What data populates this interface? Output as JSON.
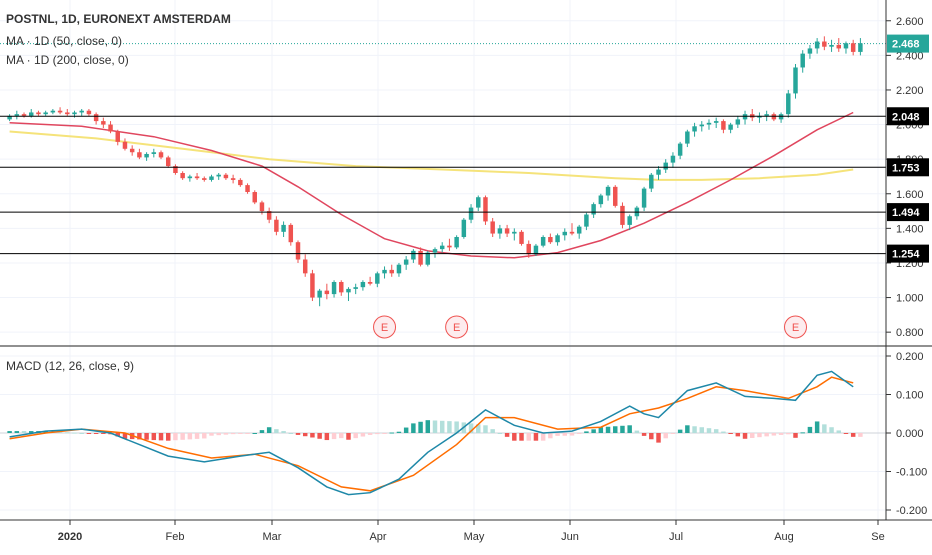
{
  "chart_data": {
    "type": "candlestick",
    "title": "POSTNL, 1D, EURONEXT AMSTERDAM",
    "legend": [
      "MA · 1D (50, close, 0)",
      "MA · 1D (200, close, 0)"
    ],
    "price_axis": {
      "ylim": [
        0.72,
        2.72
      ],
      "ticks": [
        "2.600",
        "2.400",
        "2.200",
        "2.000",
        "1.800",
        "1.600",
        "1.400",
        "1.200",
        "1.000",
        "0.800"
      ],
      "tick_values": [
        2.6,
        2.4,
        2.2,
        2.0,
        1.8,
        1.6,
        1.4,
        1.2,
        1.0,
        0.8
      ]
    },
    "time_axis": {
      "labels": [
        "2020",
        "Feb",
        "Mar",
        "Apr",
        "May",
        "Jun",
        "Jul",
        "Aug",
        "Se"
      ]
    },
    "current_price": {
      "value": 2.468,
      "label": "2.468"
    },
    "horizontal_levels": [
      {
        "value": 2.048,
        "label": "2.048"
      },
      {
        "value": 1.753,
        "label": "1.753"
      },
      {
        "value": 1.494,
        "label": "1.494"
      },
      {
        "value": 1.254,
        "label": "1.254"
      }
    ],
    "earnings_markers": {
      "label": "E",
      "count": 3
    },
    "candles": [
      [
        2.03,
        2.06,
        2.02,
        2.05
      ],
      [
        2.05,
        2.08,
        2.03,
        2.06
      ],
      [
        2.06,
        2.07,
        2.04,
        2.05
      ],
      [
        2.05,
        2.09,
        2.04,
        2.07
      ],
      [
        2.07,
        2.08,
        2.05,
        2.06
      ],
      [
        2.06,
        2.08,
        2.05,
        2.07
      ],
      [
        2.07,
        2.09,
        2.06,
        2.08
      ],
      [
        2.08,
        2.1,
        2.06,
        2.07
      ],
      [
        2.07,
        2.09,
        2.05,
        2.06
      ],
      [
        2.06,
        2.08,
        2.04,
        2.07
      ],
      [
        2.07,
        2.09,
        2.05,
        2.08
      ],
      [
        2.08,
        2.09,
        2.05,
        2.06
      ],
      [
        2.06,
        2.07,
        2.0,
        2.02
      ],
      [
        2.02,
        2.04,
        1.98,
        2.0
      ],
      [
        2.0,
        2.02,
        1.95,
        1.96
      ],
      [
        1.96,
        1.97,
        1.88,
        1.9
      ],
      [
        1.9,
        1.92,
        1.85,
        1.86
      ],
      [
        1.86,
        1.88,
        1.82,
        1.84
      ],
      [
        1.84,
        1.86,
        1.8,
        1.81
      ],
      [
        1.81,
        1.84,
        1.79,
        1.83
      ],
      [
        1.83,
        1.86,
        1.81,
        1.84
      ],
      [
        1.84,
        1.85,
        1.8,
        1.81
      ],
      [
        1.81,
        1.82,
        1.75,
        1.76
      ],
      [
        1.76,
        1.77,
        1.71,
        1.72
      ],
      [
        1.72,
        1.73,
        1.68,
        1.69
      ],
      [
        1.69,
        1.71,
        1.67,
        1.7
      ],
      [
        1.7,
        1.72,
        1.68,
        1.69
      ],
      [
        1.69,
        1.7,
        1.67,
        1.68
      ],
      [
        1.68,
        1.71,
        1.67,
        1.7
      ],
      [
        1.7,
        1.72,
        1.68,
        1.71
      ],
      [
        1.71,
        1.72,
        1.68,
        1.69
      ],
      [
        1.69,
        1.71,
        1.66,
        1.68
      ],
      [
        1.68,
        1.69,
        1.64,
        1.65
      ],
      [
        1.65,
        1.66,
        1.6,
        1.61
      ],
      [
        1.61,
        1.62,
        1.54,
        1.55
      ],
      [
        1.55,
        1.56,
        1.48,
        1.5
      ],
      [
        1.5,
        1.52,
        1.43,
        1.45
      ],
      [
        1.45,
        1.47,
        1.36,
        1.38
      ],
      [
        1.38,
        1.44,
        1.35,
        1.42
      ],
      [
        1.42,
        1.43,
        1.3,
        1.32
      ],
      [
        1.32,
        1.33,
        1.2,
        1.22
      ],
      [
        1.22,
        1.25,
        1.12,
        1.14
      ],
      [
        1.14,
        1.16,
        0.98,
        1.0
      ],
      [
        1.0,
        1.05,
        0.95,
        1.04
      ],
      [
        1.04,
        1.08,
        0.99,
        1.02
      ],
      [
        1.02,
        1.1,
        1.0,
        1.09
      ],
      [
        1.09,
        1.1,
        1.01,
        1.03
      ],
      [
        1.03,
        1.06,
        0.98,
        1.05
      ],
      [
        1.05,
        1.08,
        1.02,
        1.06
      ],
      [
        1.06,
        1.1,
        1.04,
        1.09
      ],
      [
        1.09,
        1.12,
        1.07,
        1.08
      ],
      [
        1.08,
        1.15,
        1.06,
        1.14
      ],
      [
        1.14,
        1.18,
        1.11,
        1.16
      ],
      [
        1.16,
        1.19,
        1.12,
        1.14
      ],
      [
        1.14,
        1.2,
        1.12,
        1.19
      ],
      [
        1.19,
        1.24,
        1.16,
        1.22
      ],
      [
        1.22,
        1.28,
        1.2,
        1.27
      ],
      [
        1.27,
        1.29,
        1.18,
        1.19
      ],
      [
        1.19,
        1.27,
        1.18,
        1.26
      ],
      [
        1.26,
        1.29,
        1.23,
        1.28
      ],
      [
        1.28,
        1.32,
        1.26,
        1.3
      ],
      [
        1.3,
        1.34,
        1.27,
        1.29
      ],
      [
        1.29,
        1.36,
        1.28,
        1.35
      ],
      [
        1.35,
        1.46,
        1.34,
        1.45
      ],
      [
        1.45,
        1.54,
        1.43,
        1.52
      ],
      [
        1.52,
        1.59,
        1.5,
        1.58
      ],
      [
        1.58,
        1.59,
        1.42,
        1.44
      ],
      [
        1.44,
        1.46,
        1.35,
        1.37
      ],
      [
        1.37,
        1.42,
        1.34,
        1.4
      ],
      [
        1.4,
        1.42,
        1.35,
        1.37
      ],
      [
        1.37,
        1.4,
        1.33,
        1.38
      ],
      [
        1.38,
        1.39,
        1.3,
        1.31
      ],
      [
        1.31,
        1.33,
        1.23,
        1.25
      ],
      [
        1.25,
        1.31,
        1.24,
        1.3
      ],
      [
        1.3,
        1.36,
        1.29,
        1.35
      ],
      [
        1.35,
        1.37,
        1.31,
        1.32
      ],
      [
        1.32,
        1.37,
        1.3,
        1.36
      ],
      [
        1.36,
        1.4,
        1.33,
        1.38
      ],
      [
        1.38,
        1.43,
        1.36,
        1.37
      ],
      [
        1.37,
        1.42,
        1.34,
        1.41
      ],
      [
        1.41,
        1.49,
        1.39,
        1.48
      ],
      [
        1.48,
        1.55,
        1.46,
        1.54
      ],
      [
        1.54,
        1.6,
        1.52,
        1.59
      ],
      [
        1.59,
        1.65,
        1.56,
        1.64
      ],
      [
        1.64,
        1.65,
        1.52,
        1.53
      ],
      [
        1.53,
        1.55,
        1.4,
        1.42
      ],
      [
        1.42,
        1.48,
        1.39,
        1.47
      ],
      [
        1.47,
        1.53,
        1.45,
        1.52
      ],
      [
        1.52,
        1.64,
        1.5,
        1.63
      ],
      [
        1.63,
        1.72,
        1.61,
        1.71
      ],
      [
        1.71,
        1.76,
        1.68,
        1.74
      ],
      [
        1.74,
        1.8,
        1.72,
        1.78
      ],
      [
        1.78,
        1.84,
        1.75,
        1.82
      ],
      [
        1.82,
        1.9,
        1.8,
        1.89
      ],
      [
        1.89,
        1.97,
        1.87,
        1.96
      ],
      [
        1.96,
        2.01,
        1.93,
        1.99
      ],
      [
        1.99,
        2.02,
        1.96,
        2.0
      ],
      [
        2.0,
        2.03,
        1.97,
        2.01
      ],
      [
        2.01,
        2.04,
        1.98,
        2.02
      ],
      [
        2.02,
        2.03,
        1.95,
        1.97
      ],
      [
        1.97,
        2.01,
        1.95,
        2.0
      ],
      [
        2.0,
        2.05,
        1.98,
        2.03
      ],
      [
        2.03,
        2.08,
        2.0,
        2.06
      ],
      [
        2.06,
        2.09,
        2.02,
        2.04
      ],
      [
        2.04,
        2.07,
        2.01,
        2.05
      ],
      [
        2.05,
        2.08,
        2.02,
        2.06
      ],
      [
        2.06,
        2.07,
        2.02,
        2.03
      ],
      [
        2.03,
        2.07,
        2.01,
        2.06
      ],
      [
        2.06,
        2.2,
        2.04,
        2.18
      ],
      [
        2.18,
        2.35,
        2.15,
        2.33
      ],
      [
        2.33,
        2.43,
        2.3,
        2.41
      ],
      [
        2.41,
        2.46,
        2.38,
        2.44
      ],
      [
        2.44,
        2.5,
        2.41,
        2.48
      ],
      [
        2.48,
        2.51,
        2.43,
        2.45
      ],
      [
        2.45,
        2.49,
        2.42,
        2.46
      ],
      [
        2.46,
        2.5,
        2.42,
        2.44
      ],
      [
        2.44,
        2.48,
        2.41,
        2.47
      ],
      [
        2.47,
        2.49,
        2.4,
        2.42
      ],
      [
        2.42,
        2.5,
        2.4,
        2.47
      ]
    ],
    "ma50": [
      [
        0,
        2.01
      ],
      [
        10,
        1.99
      ],
      [
        20,
        1.93
      ],
      [
        28,
        1.85
      ],
      [
        35,
        1.76
      ],
      [
        40,
        1.64
      ],
      [
        46,
        1.48
      ],
      [
        52,
        1.34
      ],
      [
        58,
        1.27
      ],
      [
        64,
        1.24
      ],
      [
        70,
        1.23
      ],
      [
        76,
        1.26
      ],
      [
        82,
        1.33
      ],
      [
        88,
        1.43
      ],
      [
        94,
        1.55
      ],
      [
        100,
        1.68
      ],
      [
        106,
        1.82
      ],
      [
        112,
        1.97
      ],
      [
        117,
        2.07
      ]
    ],
    "ma200": [
      [
        0,
        1.96
      ],
      [
        12,
        1.92
      ],
      [
        24,
        1.86
      ],
      [
        36,
        1.8
      ],
      [
        48,
        1.76
      ],
      [
        60,
        1.74
      ],
      [
        72,
        1.72
      ],
      [
        84,
        1.69
      ],
      [
        90,
        1.68
      ],
      [
        96,
        1.68
      ],
      [
        104,
        1.69
      ],
      [
        112,
        1.71
      ],
      [
        117,
        1.74
      ]
    ],
    "macd_panel": {
      "title": "MACD (12, 26, close, 9)",
      "ylim": [
        -0.2,
        0.2
      ],
      "ticks": [
        "0.200",
        "0.100",
        "0.000",
        "-0.100",
        "-0.200"
      ],
      "tick_values": [
        0.2,
        0.1,
        0.0,
        -0.1,
        -0.2
      ]
    },
    "macd": [
      [
        0,
        -0.01
      ],
      [
        5,
        0.005
      ],
      [
        10,
        0.01
      ],
      [
        14,
        0.0
      ],
      [
        18,
        -0.03
      ],
      [
        22,
        -0.06
      ],
      [
        27,
        -0.075
      ],
      [
        32,
        -0.06
      ],
      [
        36,
        -0.05
      ],
      [
        40,
        -0.09
      ],
      [
        44,
        -0.14
      ],
      [
        47,
        -0.16
      ],
      [
        50,
        -0.155
      ],
      [
        54,
        -0.12
      ],
      [
        58,
        -0.05
      ],
      [
        62,
        0.0
      ],
      [
        66,
        0.06
      ],
      [
        70,
        0.02
      ],
      [
        74,
        0.0
      ],
      [
        78,
        0.005
      ],
      [
        82,
        0.03
      ],
      [
        86,
        0.07
      ],
      [
        88,
        0.05
      ],
      [
        90,
        0.04
      ],
      [
        94,
        0.11
      ],
      [
        98,
        0.13
      ],
      [
        102,
        0.095
      ],
      [
        106,
        0.09
      ],
      [
        109,
        0.085
      ],
      [
        112,
        0.15
      ],
      [
        114,
        0.16
      ],
      [
        117,
        0.12
      ]
    ],
    "signal": [
      [
        0,
        -0.015
      ],
      [
        5,
        0.0
      ],
      [
        10,
        0.01
      ],
      [
        16,
        0.0
      ],
      [
        22,
        -0.04
      ],
      [
        28,
        -0.065
      ],
      [
        34,
        -0.055
      ],
      [
        40,
        -0.085
      ],
      [
        46,
        -0.14
      ],
      [
        50,
        -0.15
      ],
      [
        56,
        -0.11
      ],
      [
        62,
        -0.03
      ],
      [
        66,
        0.04
      ],
      [
        70,
        0.04
      ],
      [
        76,
        0.01
      ],
      [
        82,
        0.015
      ],
      [
        86,
        0.05
      ],
      [
        90,
        0.065
      ],
      [
        94,
        0.09
      ],
      [
        98,
        0.12
      ],
      [
        102,
        0.11
      ],
      [
        108,
        0.09
      ],
      [
        112,
        0.12
      ],
      [
        114,
        0.145
      ],
      [
        117,
        0.13
      ]
    ]
  }
}
